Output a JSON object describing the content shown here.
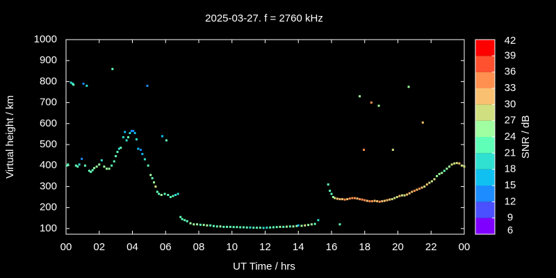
{
  "chart_data": {
    "type": "scatter",
    "title": "2025-03-27. f = 2760 kHz",
    "x_label": "UT Time / hrs",
    "y_label": "Virtual height / km",
    "xlim": [
      0,
      24
    ],
    "ylim": [
      73,
      1000
    ],
    "xticks": [
      {
        "value": 0,
        "label": "00"
      },
      {
        "value": 2,
        "label": "02"
      },
      {
        "value": 4,
        "label": "04"
      },
      {
        "value": 6,
        "label": "06"
      },
      {
        "value": 8,
        "label": "08"
      },
      10,
      12,
      14,
      16,
      18,
      20,
      22,
      {
        "value": 24,
        "label": "00"
      }
    ],
    "yticks": [
      100,
      200,
      300,
      400,
      500,
      600,
      700,
      800,
      900,
      1000
    ],
    "colorbar": {
      "label": "SNR / dB",
      "lim": [
        6,
        42
      ],
      "ticks": [
        6,
        9,
        12,
        15,
        18,
        21,
        24,
        27,
        30,
        33,
        36,
        39,
        42
      ],
      "colors": [
        "#8000ff",
        "#4a50ff",
        "#1c8cff",
        "#10c0f0",
        "#30e0d0",
        "#60ffb8",
        "#a0ffa0",
        "#d0e080",
        "#f8c070",
        "#ff9050",
        "#ff5030",
        "#ff0000"
      ]
    },
    "points": {
      "x": [
        0.05,
        0.12,
        0.3,
        0.4,
        0.45,
        0.6,
        0.7,
        0.8,
        0.95,
        1.05,
        1.15,
        1.25,
        1.4,
        1.5,
        1.6,
        1.7,
        1.85,
        2.0,
        2.15,
        2.3,
        2.45,
        2.6,
        2.75,
        2.8,
        2.9,
        3.0,
        3.1,
        3.2,
        3.3,
        3.45,
        3.55,
        3.65,
        3.75,
        3.85,
        3.95,
        4.05,
        4.15,
        4.25,
        4.35,
        4.5,
        4.6,
        4.75,
        4.9,
        4.95,
        5.1,
        5.2,
        5.3,
        5.4,
        5.5,
        5.6,
        5.75,
        5.8,
        5.95,
        6.05,
        6.15,
        6.3,
        6.45,
        6.6,
        6.75,
        6.9,
        7.0,
        7.15,
        7.3,
        7.5,
        7.7,
        7.9,
        8.1,
        8.3,
        8.5,
        8.7,
        8.9,
        9.1,
        9.3,
        9.5,
        9.7,
        9.9,
        10.1,
        10.3,
        10.5,
        10.7,
        10.9,
        11.1,
        11.3,
        11.5,
        11.7,
        11.9,
        12.1,
        12.3,
        12.5,
        12.7,
        12.9,
        13.1,
        13.3,
        13.5,
        13.7,
        13.9,
        14.0,
        14.2,
        14.4,
        14.6,
        14.8,
        15.0,
        15.2,
        15.8,
        15.9,
        16.0,
        16.1,
        16.2,
        16.35,
        16.5,
        16.5,
        16.65,
        16.8,
        16.95,
        17.1,
        17.25,
        17.4,
        17.55,
        17.7,
        17.7,
        17.85,
        17.95,
        18.0,
        18.15,
        18.3,
        18.4,
        18.45,
        18.6,
        18.75,
        18.85,
        18.9,
        19.05,
        19.2,
        19.35,
        19.5,
        19.65,
        19.7,
        19.8,
        19.95,
        20.1,
        20.25,
        20.4,
        20.55,
        20.65,
        20.7,
        20.85,
        21.0,
        21.15,
        21.3,
        21.45,
        21.5,
        21.6,
        21.75,
        21.9,
        22.05,
        22.2,
        22.35,
        22.5,
        22.65,
        22.8,
        22.95,
        23.1,
        23.25,
        23.4,
        23.55,
        23.7,
        23.85,
        24.0
      ],
      "y": [
        400,
        405,
        795,
        790,
        785,
        400,
        395,
        405,
        432,
        790,
        400,
        780,
        375,
        370,
        378,
        388,
        395,
        405,
        425,
        395,
        385,
        385,
        400,
        860,
        420,
        445,
        465,
        480,
        485,
        535,
        560,
        520,
        535,
        555,
        565,
        565,
        555,
        525,
        480,
        475,
        455,
        430,
        780,
        400,
        355,
        340,
        320,
        300,
        275,
        265,
        260,
        540,
        265,
        520,
        260,
        250,
        255,
        260,
        265,
        155,
        145,
        140,
        135,
        125,
        120,
        120,
        118,
        117,
        115,
        115,
        112,
        110,
        110,
        108,
        108,
        108,
        107,
        107,
        106,
        106,
        105,
        105,
        104,
        104,
        104,
        103,
        104,
        105,
        106,
        107,
        108,
        108,
        109,
        110,
        110,
        112,
        115,
        113,
        115,
        117,
        120,
        122,
        140,
        310,
        280,
        265,
        250,
        245,
        242,
        120,
        240,
        240,
        238,
        240,
        243,
        245,
        245,
        243,
        730,
        240,
        238,
        475,
        235,
        232,
        230,
        700,
        230,
        232,
        230,
        685,
        228,
        230,
        232,
        235,
        238,
        240,
        475,
        245,
        250,
        255,
        258,
        258,
        262,
        775,
        268,
        275,
        280,
        285,
        290,
        295,
        605,
        300,
        310,
        318,
        325,
        335,
        350,
        360,
        365,
        375,
        385,
        395,
        405,
        410,
        412,
        410,
        400,
        395
      ],
      "snr": [
        22,
        21,
        19,
        20,
        21,
        23,
        22,
        20,
        12,
        13,
        22,
        20,
        21,
        22,
        23,
        24,
        24,
        24,
        20,
        25,
        26,
        24,
        22,
        22,
        23,
        22,
        21,
        20,
        23,
        18,
        17,
        19,
        21,
        20,
        13,
        12,
        17,
        20,
        15,
        14,
        15,
        18,
        14,
        21,
        24,
        22,
        24,
        27,
        22,
        21,
        24,
        17,
        22,
        22,
        21,
        22,
        21,
        20,
        19,
        22,
        21,
        22,
        22,
        24,
        25,
        24,
        23,
        24,
        25,
        23,
        22,
        23,
        24,
        23,
        22,
        23,
        21,
        22,
        23,
        21,
        22,
        20,
        21,
        22,
        21,
        20,
        19,
        21,
        22,
        23,
        24,
        23,
        24,
        22,
        25,
        24,
        16,
        25,
        27,
        26,
        24,
        22,
        18,
        22,
        21,
        23,
        24,
        28,
        30,
        22,
        31,
        32,
        33,
        32,
        33,
        34,
        33,
        32,
        24,
        33,
        34,
        33,
        33,
        32,
        34,
        34,
        33,
        32,
        31,
        24,
        33,
        32,
        31,
        30,
        30,
        29,
        29,
        28,
        29,
        30,
        28,
        29,
        30,
        26,
        31,
        32,
        33,
        32,
        33,
        31,
        31,
        29,
        30,
        28,
        29,
        27,
        26,
        25,
        24,
        23,
        24,
        26,
        27,
        28,
        29,
        30,
        28,
        27
      ]
    }
  }
}
